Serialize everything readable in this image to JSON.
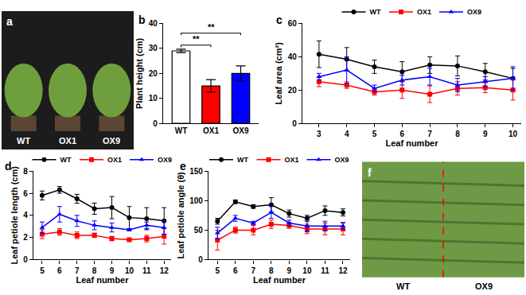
{
  "chart_data": [
    {
      "label": "a",
      "type": "image",
      "texts": [
        "WT",
        "OX1",
        "OX9"
      ]
    },
    {
      "label": "b",
      "type": "bar",
      "categories": [
        "WT",
        "OX1",
        "OX9"
      ],
      "values": [
        29,
        15,
        20
      ],
      "errors": [
        0.7,
        2.5,
        3
      ],
      "colors": [
        "#ffffff",
        "#ff0000",
        "#0000ff"
      ],
      "y_label": "Plant height (cm)",
      "ylim": [
        0,
        40
      ],
      "yticks": [
        0,
        10,
        20,
        30,
        40
      ],
      "annotations": [
        {
          "text": "**",
          "between": [
            "WT",
            "OX1"
          ]
        },
        {
          "text": "**",
          "between": [
            "WT",
            "OX9"
          ]
        }
      ]
    },
    {
      "label": "c",
      "type": "line",
      "x_label": "Leaf number",
      "y_label": "Leaf area (cm²)",
      "x": [
        3,
        4,
        5,
        6,
        7,
        8,
        9,
        10
      ],
      "xlim": [
        2.4,
        10.3
      ],
      "xticks": [
        3,
        4,
        5,
        6,
        7,
        8,
        9,
        10
      ],
      "ylim": [
        0,
        60
      ],
      "yticks": [
        0,
        20,
        40,
        60
      ],
      "legend": "top",
      "series": [
        {
          "name": "WT",
          "color": "#000000",
          "marker": "circle",
          "values": [
            41.5,
            38.5,
            34,
            31,
            35,
            34.5,
            31,
            27
          ],
          "errors": [
            8,
            7,
            4,
            6,
            5,
            6,
            5,
            6
          ]
        },
        {
          "name": "OX1",
          "color": "#ff0000",
          "marker": "square",
          "values": [
            25,
            23,
            19,
            20,
            17.5,
            21,
            21.5,
            20
          ],
          "errors": [
            3,
            2,
            2,
            5,
            5,
            4,
            3,
            6
          ]
        },
        {
          "name": "OX9",
          "color": "#0000ff",
          "marker": "triangle-up",
          "values": [
            28,
            32,
            21,
            26,
            28,
            23,
            25,
            27
          ],
          "errors": [
            2,
            8,
            2,
            3,
            5,
            4,
            3,
            7
          ]
        }
      ]
    },
    {
      "label": "d",
      "type": "line",
      "x_label": "Leaf number",
      "y_label": "Leaf petiole length (cm)",
      "x": [
        5,
        6,
        7,
        8,
        9,
        10,
        11,
        12
      ],
      "xlim": [
        4.5,
        12.4
      ],
      "xticks": [
        5,
        6,
        7,
        8,
        9,
        10,
        11,
        12
      ],
      "ylim": [
        0,
        8
      ],
      "yticks": [
        0,
        2,
        4,
        6,
        8
      ],
      "legend": "top",
      "series": [
        {
          "name": "WT",
          "color": "#000000",
          "marker": "circle",
          "values": [
            5.8,
            6.3,
            5.5,
            4.6,
            4.7,
            3.8,
            3.7,
            3.5
          ],
          "errors": [
            0.4,
            0.3,
            0.4,
            0.5,
            1.0,
            1.0,
            1.0,
            1.2
          ]
        },
        {
          "name": "OX1",
          "color": "#ff0000",
          "marker": "square",
          "values": [
            2.3,
            2.5,
            2.2,
            2.2,
            1.9,
            1.8,
            1.9,
            2.1
          ],
          "errors": [
            0.4,
            0.3,
            0.3,
            0.2,
            0.2,
            0.1,
            0.3,
            0.7
          ]
        },
        {
          "name": "OX9",
          "color": "#0000ff",
          "marker": "triangle-up",
          "values": [
            2.9,
            4.1,
            3.5,
            3.1,
            2.9,
            2.7,
            3.1,
            2.9
          ],
          "errors": [
            0.5,
            0.7,
            0.5,
            0.4,
            0.4,
            0.1,
            0.3,
            0.6
          ]
        }
      ]
    },
    {
      "label": "e",
      "type": "line",
      "x_label": "Leaf number",
      "y_label": "Leaf petiole angle (θ)",
      "x": [
        5,
        6,
        7,
        8,
        9,
        10,
        11,
        12
      ],
      "xlim": [
        4.5,
        12.4
      ],
      "xticks": [
        5,
        6,
        7,
        8,
        9,
        10,
        11,
        12
      ],
      "ylim": [
        0,
        150
      ],
      "yticks": [
        0,
        50,
        100,
        150
      ],
      "legend": "top",
      "series": [
        {
          "name": "WT",
          "color": "#000000",
          "marker": "circle",
          "values": [
            65,
            98,
            90,
            93,
            78,
            70,
            83,
            80
          ],
          "errors": [
            5,
            3,
            3,
            12,
            6,
            5,
            8,
            6
          ]
        },
        {
          "name": "OX1",
          "color": "#ff0000",
          "marker": "square",
          "values": [
            33,
            50,
            50,
            60,
            58,
            52,
            52,
            52
          ],
          "errors": [
            17,
            5,
            8,
            7,
            5,
            8,
            10,
            10
          ]
        },
        {
          "name": "OX9",
          "color": "#0000ff",
          "marker": "triangle-up",
          "values": [
            45,
            70,
            62,
            80,
            62,
            57,
            57,
            57
          ],
          "errors": [
            10,
            5,
            3,
            10,
            5,
            10,
            8,
            6
          ]
        }
      ]
    },
    {
      "label": "f",
      "type": "image",
      "texts": [
        "WT",
        "OX9"
      ]
    }
  ]
}
